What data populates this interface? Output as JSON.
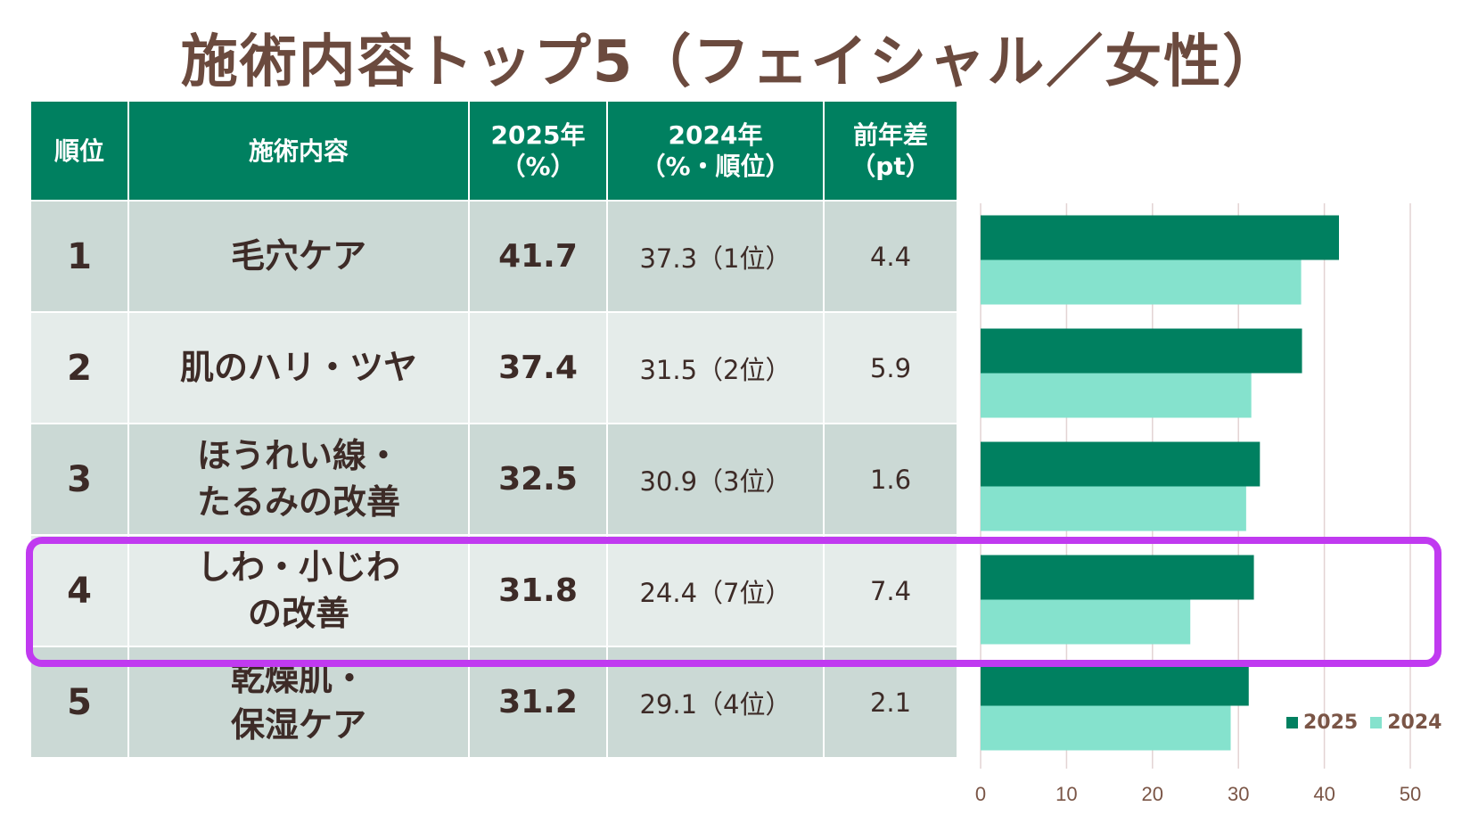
{
  "title": "施術内容トップ5（フェイシャル／女性）",
  "table": {
    "headers": [
      "順位",
      "施術内容",
      "2025年\n（%）",
      "2024年\n（%・順位）",
      "前年差\n（pt）"
    ],
    "rows": [
      {
        "rank": "1",
        "item": "毛穴ケア",
        "v2025": "41.7",
        "v2024": "37.3（1位）",
        "diff": "4.4"
      },
      {
        "rank": "2",
        "item": "肌のハリ・ツヤ",
        "v2025": "37.4",
        "v2024": "31.5（2位）",
        "diff": "5.9"
      },
      {
        "rank": "3",
        "item": "ほうれい線・\nたるみの改善",
        "v2025": "32.5",
        "v2024": "30.9（3位）",
        "diff": "1.6"
      },
      {
        "rank": "4",
        "item": "しわ・小じわ\nの改善",
        "v2025": "31.8",
        "v2024": "24.4（7位）",
        "diff": "7.4"
      },
      {
        "rank": "5",
        "item": "乾燥肌・\n保湿ケア",
        "v2025": "31.2",
        "v2024": "29.1（4位）",
        "diff": "2.1"
      }
    ],
    "highlighted_rank": "4"
  },
  "chart_data": {
    "type": "bar",
    "orientation": "horizontal",
    "categories": [
      "毛穴ケア",
      "肌のハリ・ツヤ",
      "ほうれい線・たるみの改善",
      "しわ・小じわの改善",
      "乾燥肌・保湿ケア"
    ],
    "series": [
      {
        "name": "2025",
        "values": [
          41.7,
          37.4,
          32.5,
          31.8,
          31.2
        ],
        "color": "#008060"
      },
      {
        "name": "2024",
        "values": [
          37.3,
          31.5,
          30.9,
          24.4,
          29.1
        ],
        "color": "#85e2cd"
      }
    ],
    "xlim": [
      0,
      50
    ],
    "xticks": [
      "0",
      "10",
      "20",
      "30",
      "40",
      "50"
    ],
    "grid": true,
    "legend": "bottom-right"
  }
}
